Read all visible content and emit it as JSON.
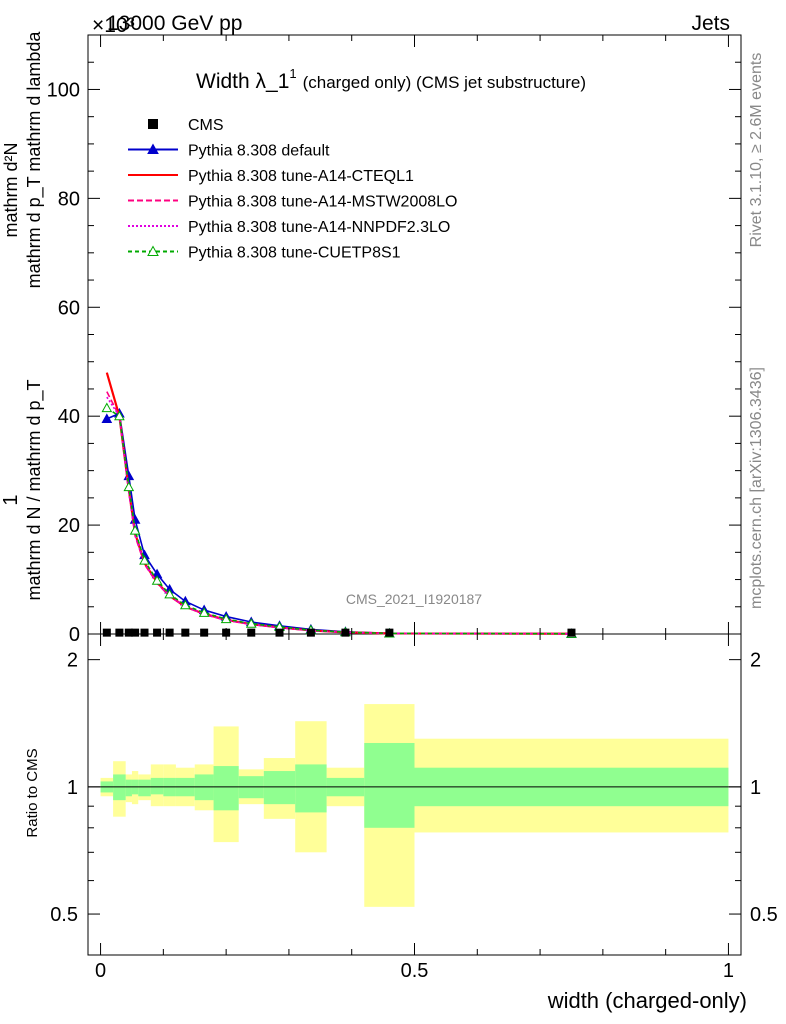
{
  "header": {
    "energy_label": "13000 GeV pp",
    "scale_label": "×10³",
    "process_label": "Jets"
  },
  "side": {
    "rivet_label": "Rivet 3.1.10, ≥ 2.6M events",
    "mcplots_label": "mcplots.cern.ch [arXiv:1306.3436]"
  },
  "watermark": "CMS_2021_I1920187",
  "chart_data": {
    "type": "line",
    "title": "Width λ_1",
    "title_superscript": "1",
    "subtitle": "(charged only) (CMS jet substructure)",
    "ylabel_main_top": "mathrm d²N",
    "ylabel_main_bottom": "mathrm d p_T mathrm d lambda",
    "ylabel_main_top_prefix": "1",
    "ylabel_main_prefix_bottom": "mathrm d N / mathrm d p_T",
    "ylabel_ratio": "Ratio to CMS",
    "xlabel": "width (charged-only)",
    "xlim": [
      -0.02,
      1.02
    ],
    "ylim_main": [
      0,
      110
    ],
    "ylim_ratio": [
      0.4,
      2.3
    ],
    "y_scale_ratio": "log",
    "x_ticks": [
      "0",
      "0.5",
      "1"
    ],
    "y_ticks_main": [
      "0",
      "20",
      "40",
      "60",
      "80",
      "100"
    ],
    "y_ticks_ratio": [
      "0.5",
      "1",
      "2"
    ],
    "bin_edges": [
      0,
      0.02,
      0.04,
      0.05,
      0.06,
      0.08,
      0.1,
      0.12,
      0.15,
      0.18,
      0.22,
      0.26,
      0.31,
      0.36,
      0.42,
      0.5,
      1.0
    ],
    "data": {
      "name": "CMS",
      "x": [
        0.01,
        0.03,
        0.045,
        0.055,
        0.07,
        0.09,
        0.11,
        0.135,
        0.165,
        0.2,
        0.24,
        0.285,
        0.335,
        0.39,
        0.46,
        0.75
      ],
      "y": [
        0.25,
        0.25,
        0.25,
        0.25,
        0.25,
        0.25,
        0.25,
        0.25,
        0.25,
        0.25,
        0.25,
        0.25,
        0.25,
        0.25,
        0.25,
        0.25
      ]
    },
    "series": [
      {
        "name": "Pythia 8.308 default",
        "color": "#0000cc",
        "dash": "",
        "marker": "triangle-filled",
        "x": [
          0.01,
          0.03,
          0.045,
          0.055,
          0.07,
          0.09,
          0.11,
          0.135,
          0.165,
          0.2,
          0.24,
          0.285,
          0.335,
          0.39,
          0.46,
          0.75
        ],
        "y": [
          39.5,
          40.5,
          29.0,
          21.0,
          14.5,
          11.0,
          8.2,
          6.0,
          4.4,
          3.2,
          2.2,
          1.5,
          0.85,
          0.4,
          0.12,
          0.05
        ]
      },
      {
        "name": "Pythia 8.308 tune-A14-CTEQL1",
        "color": "#ff0000",
        "dash": "",
        "marker": "none",
        "x": [
          0.01,
          0.03,
          0.045,
          0.055,
          0.07,
          0.09,
          0.11,
          0.135,
          0.165,
          0.2,
          0.24,
          0.285,
          0.335,
          0.39,
          0.46,
          0.75
        ],
        "y": [
          48.0,
          40.0,
          26.5,
          18.5,
          13.0,
          9.5,
          7.0,
          5.0,
          3.7,
          2.6,
          1.8,
          1.2,
          0.65,
          0.3,
          0.1,
          0.04
        ]
      },
      {
        "name": "Pythia 8.308 tune-A14-MSTW2008LO",
        "color": "#ff0080",
        "dash": "6,3",
        "marker": "none",
        "x": [
          0.01,
          0.03,
          0.045,
          0.055,
          0.07,
          0.09,
          0.11,
          0.135,
          0.165,
          0.2,
          0.24,
          0.285,
          0.335,
          0.39,
          0.46,
          0.75
        ],
        "y": [
          44.5,
          40.0,
          26.0,
          18.0,
          12.8,
          9.3,
          6.9,
          5.0,
          3.6,
          2.5,
          1.75,
          1.15,
          0.62,
          0.29,
          0.1,
          0.04
        ]
      },
      {
        "name": "Pythia 8.308 tune-A14-NNPDF2.3LO",
        "color": "#e000e0",
        "dash": "2,2",
        "marker": "none",
        "x": [
          0.01,
          0.03,
          0.045,
          0.055,
          0.07,
          0.09,
          0.11,
          0.135,
          0.165,
          0.2,
          0.24,
          0.285,
          0.335,
          0.39,
          0.46,
          0.75
        ],
        "y": [
          43.5,
          40.0,
          26.2,
          18.3,
          13.0,
          9.4,
          7.0,
          5.0,
          3.65,
          2.55,
          1.78,
          1.18,
          0.63,
          0.3,
          0.1,
          0.04
        ]
      },
      {
        "name": "Pythia 8.308 tune-CUETP8S1",
        "color": "#00aa00",
        "dash": "4,3",
        "marker": "triangle-open",
        "x": [
          0.01,
          0.03,
          0.045,
          0.055,
          0.07,
          0.09,
          0.11,
          0.135,
          0.165,
          0.2,
          0.24,
          0.285,
          0.335,
          0.39,
          0.46,
          0.75
        ],
        "y": [
          41.5,
          40.0,
          27.0,
          19.0,
          13.5,
          9.8,
          7.3,
          5.3,
          3.9,
          2.75,
          1.9,
          1.3,
          0.7,
          0.33,
          0.11,
          0.045
        ]
      }
    ],
    "ratio_bands": {
      "inner_color": "#90ff90",
      "outer_color": "#ffff99",
      "inner_lo": [
        0.97,
        0.93,
        0.95,
        0.96,
        0.95,
        0.96,
        0.95,
        0.95,
        0.93,
        0.88,
        0.94,
        0.91,
        0.87,
        0.95,
        0.8,
        0.9
      ],
      "inner_hi": [
        1.03,
        1.07,
        1.04,
        1.04,
        1.04,
        1.05,
        1.05,
        1.05,
        1.07,
        1.12,
        1.06,
        1.09,
        1.13,
        1.05,
        1.27,
        1.11
      ],
      "outer_lo": [
        0.95,
        0.85,
        0.92,
        0.91,
        0.93,
        0.9,
        0.9,
        0.9,
        0.88,
        0.74,
        0.91,
        0.84,
        0.7,
        0.9,
        0.52,
        0.78
      ],
      "outer_hi": [
        1.05,
        1.15,
        1.07,
        1.09,
        1.07,
        1.13,
        1.13,
        1.11,
        1.13,
        1.39,
        1.1,
        1.17,
        1.43,
        1.11,
        1.57,
        1.3
      ]
    },
    "grid": false,
    "legend_position": "top-left"
  }
}
